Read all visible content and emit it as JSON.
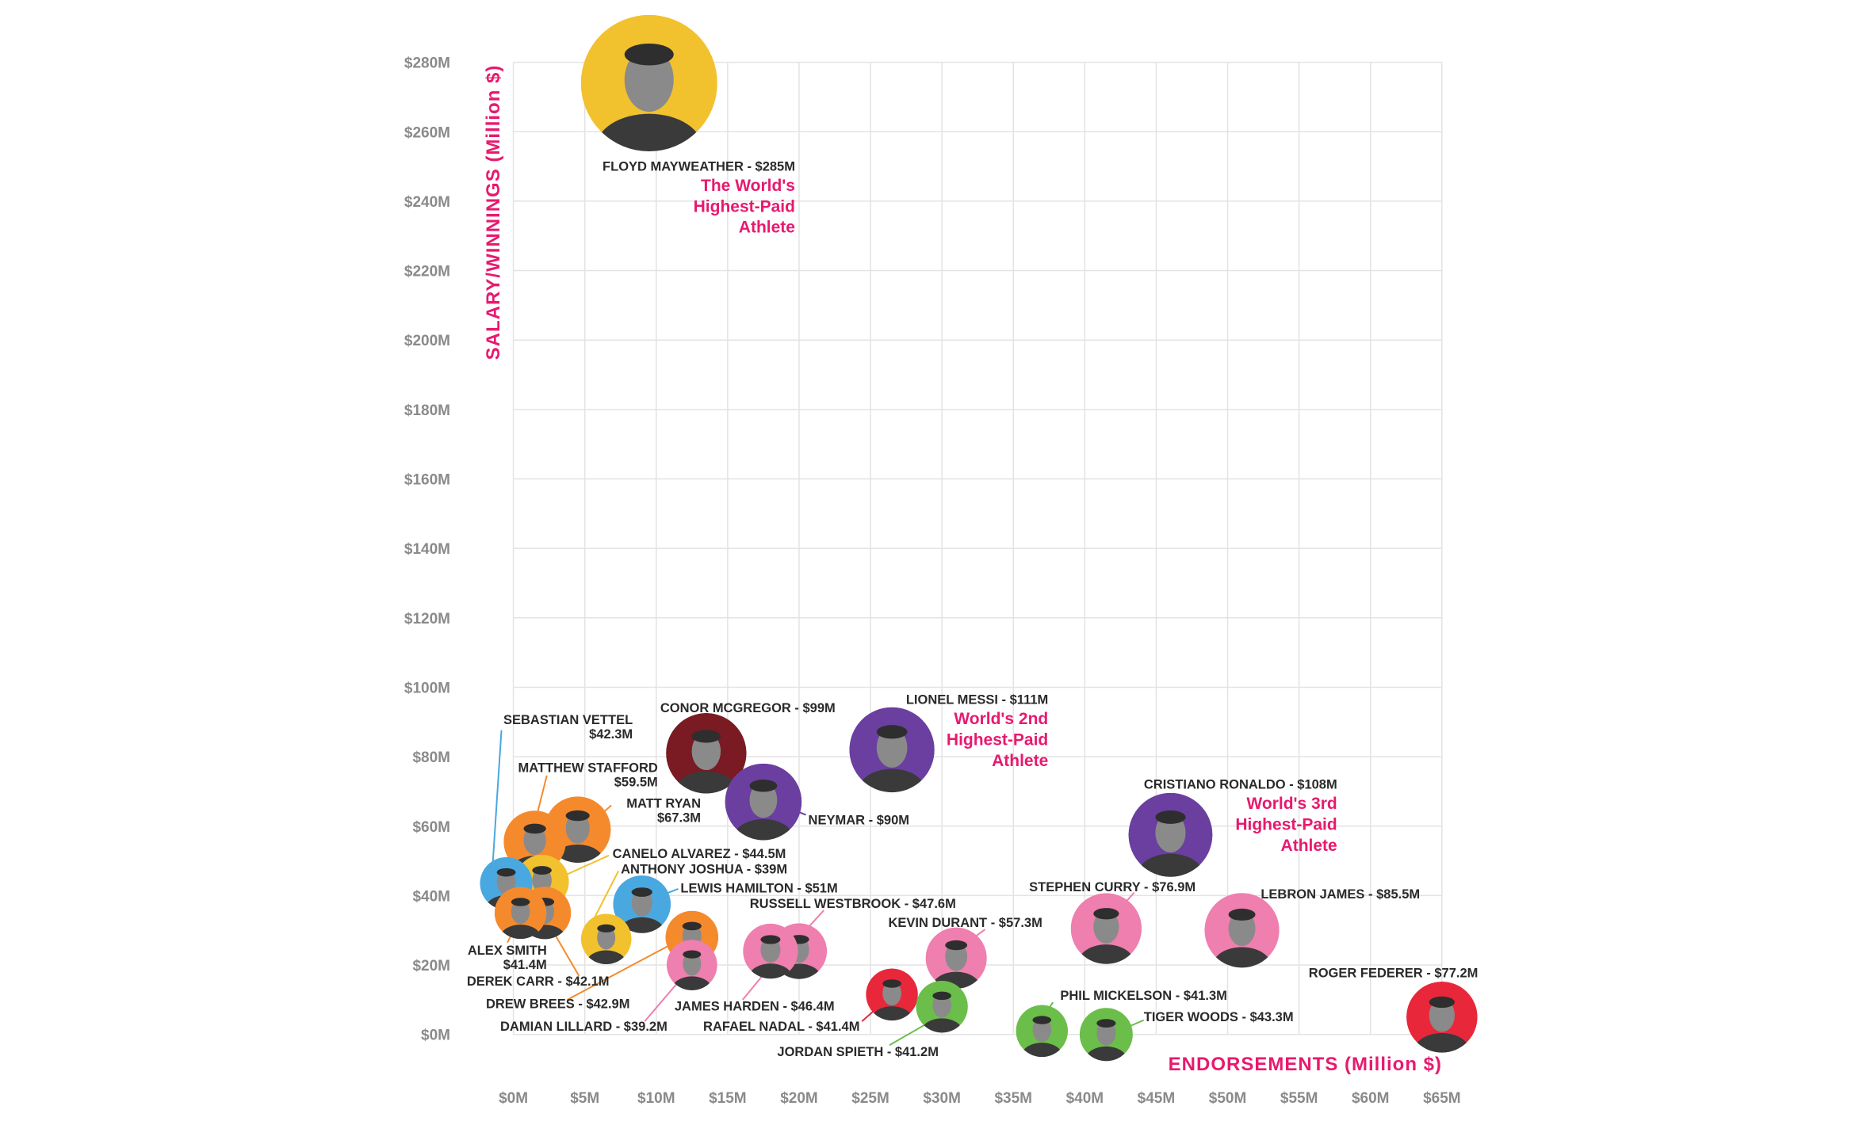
{
  "chart_data": {
    "type": "scatter",
    "xlabel": "ENDORSEMENTS (Million $)",
    "ylabel": "SALARY/WINNINGS (Million $)",
    "xlim": [
      0,
      65
    ],
    "ylim": [
      0,
      280
    ],
    "x_ticks": [
      "$0M",
      "$5M",
      "$10M",
      "$15M",
      "$20M",
      "$25M",
      "$30M",
      "$35M",
      "$40M",
      "$45M",
      "$50M",
      "$55M",
      "$60M",
      "$65M"
    ],
    "y_ticks": [
      "$0M",
      "$20M",
      "$40M",
      "$60M",
      "$80M",
      "$100M",
      "$120M",
      "$140M",
      "$160M",
      "$180M",
      "$200M",
      "$220M",
      "$240M",
      "$260M",
      "$280M"
    ],
    "grid": true,
    "bubble_size": "total earnings",
    "points": [
      {
        "label_lines": [
          "FLOYD MAYWEATHER - $285M"
        ],
        "total": 285,
        "endorsements": 9.5,
        "salary": 274,
        "color": "#F2C12E",
        "note": [
          "The World's",
          "Highest-Paid",
          "Athlete"
        ]
      },
      {
        "label_lines": [
          "LIONEL MESSI - $111M"
        ],
        "total": 111,
        "endorsements": 26.5,
        "salary": 82,
        "color": "#6A3FA0",
        "note": [
          "World's 2nd",
          "Highest-Paid",
          "Athlete"
        ]
      },
      {
        "label_lines": [
          "CRISTIANO RONALDO - $108M"
        ],
        "total": 108,
        "endorsements": 46,
        "salary": 57.5,
        "color": "#6A3FA0",
        "note": [
          "World's 3rd",
          "Highest-Paid",
          "Athlete"
        ]
      },
      {
        "label_lines": [
          "CONOR MCGREGOR - $99M"
        ],
        "total": 99,
        "endorsements": 13.5,
        "salary": 81,
        "color": "#7A1A22"
      },
      {
        "label_lines": [
          "NEYMAR - $90M"
        ],
        "total": 90,
        "endorsements": 17.5,
        "salary": 67,
        "color": "#6A3FA0"
      },
      {
        "label_lines": [
          "LEBRON JAMES - $85.5M"
        ],
        "total": 85.5,
        "endorsements": 51,
        "salary": 30,
        "color": "#EE7FAE"
      },
      {
        "label_lines": [
          "ROGER FEDERER - $77.2M"
        ],
        "total": 77.2,
        "endorsements": 65,
        "salary": 5,
        "color": "#E8283A"
      },
      {
        "label_lines": [
          "STEPHEN CURRY - $76.9M"
        ],
        "total": 76.9,
        "endorsements": 41.5,
        "salary": 30.5,
        "color": "#EE7FAE"
      },
      {
        "label_lines": [
          "MATT RYAN",
          "$67.3M"
        ],
        "total": 67.3,
        "endorsements": 4.5,
        "salary": 59,
        "color": "#F58A2D"
      },
      {
        "label_lines": [
          "MATTHEW STAFFORD",
          "$59.5M"
        ],
        "total": 59.5,
        "endorsements": 1.5,
        "salary": 55.5,
        "color": "#F58A2D"
      },
      {
        "label_lines": [
          "KEVIN DURANT - $57.3M"
        ],
        "total": 57.3,
        "endorsements": 31,
        "salary": 22,
        "color": "#EE7FAE"
      },
      {
        "label_lines": [
          "LEWIS HAMILTON - $51M"
        ],
        "total": 51,
        "endorsements": 9,
        "salary": 37.5,
        "color": "#4AA8E0"
      },
      {
        "label_lines": [
          "RUSSELL WESTBROOK - $47.6M"
        ],
        "total": 47.6,
        "endorsements": 20,
        "salary": 24,
        "color": "#EE7FAE"
      },
      {
        "label_lines": [
          "JAMES HARDEN - $46.4M"
        ],
        "total": 46.4,
        "endorsements": 18,
        "salary": 24,
        "color": "#EE7FAE"
      },
      {
        "label_lines": [
          "CANELO ALVAREZ - $44.5M"
        ],
        "total": 44.5,
        "endorsements": 2,
        "salary": 44,
        "color": "#F2C12E"
      },
      {
        "label_lines": [
          "TIGER WOODS - $43.3M"
        ],
        "total": 43.3,
        "endorsements": 41.5,
        "salary": 0,
        "color": "#6BBE4A"
      },
      {
        "label_lines": [
          "DREW BREES - $42.9M"
        ],
        "total": 42.9,
        "endorsements": 12.5,
        "salary": 28,
        "color": "#F58A2D"
      },
      {
        "label_lines": [
          "SEBASTIAN VETTEL",
          "$42.3M"
        ],
        "total": 42.3,
        "endorsements": -0.5,
        "salary": 43.5,
        "color": "#4AA8E0"
      },
      {
        "label_lines": [
          "DEREK CARR - $42.1M"
        ],
        "total": 42.1,
        "endorsements": 2.2,
        "salary": 35,
        "color": "#F58A2D"
      },
      {
        "label_lines": [
          "ALEX SMITH",
          "$41.4M"
        ],
        "total": 41.4,
        "endorsements": 0.5,
        "salary": 35,
        "color": "#F58A2D"
      },
      {
        "label_lines": [
          "RAFAEL NADAL - $41.4M"
        ],
        "total": 41.4,
        "endorsements": 26.5,
        "salary": 11.5,
        "color": "#E8283A"
      },
      {
        "label_lines": [
          "PHIL MICKELSON - $41.3M"
        ],
        "total": 41.3,
        "endorsements": 37,
        "salary": 1,
        "color": "#6BBE4A"
      },
      {
        "label_lines": [
          "JORDAN SPIETH - $41.2M"
        ],
        "total": 41.2,
        "endorsements": 30,
        "salary": 8,
        "color": "#6BBE4A"
      },
      {
        "label_lines": [
          "DAMIAN LILLARD - $39.2M"
        ],
        "total": 39.2,
        "endorsements": 12.5,
        "salary": 20,
        "color": "#EE7FAE"
      },
      {
        "label_lines": [
          "ANTHONY JOSHUA - $39M"
        ],
        "total": 39,
        "endorsements": 6.5,
        "salary": 27.5,
        "color": "#F2C12E"
      }
    ]
  }
}
